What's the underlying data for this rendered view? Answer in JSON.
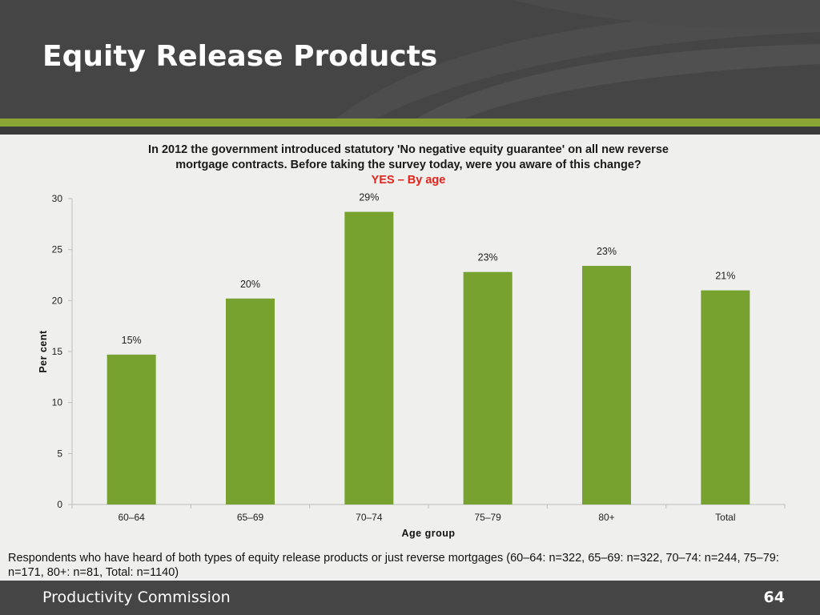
{
  "slide": {
    "title": "Equity Release Products",
    "footer_org": "Productivity Commission",
    "page_number": "64",
    "footnote": "Respondents who have heard of both types of equity release products or just reverse mortgages (60–64: n=322, 65–69: n=322, 70–74: n=244, 75–79: n=171, 80+: n=81, Total: n=1140)"
  },
  "colors": {
    "header_bg": "#454545",
    "accent_green": "#8aa533",
    "bar_green": "#78a22f",
    "subtitle_red": "#e3241b"
  },
  "chart_data": {
    "type": "bar",
    "title_line1": "In 2012 the government introduced statutory 'No negative equity guarantee' on all new reverse",
    "title_line2": "mortgage contracts. Before taking the survey today, were you aware of this change?",
    "subtitle": "YES – By age",
    "xlabel": "Age group",
    "ylabel": "Per cent",
    "ylim": [
      0,
      30
    ],
    "yticks": [
      "0",
      "5",
      "10",
      "15",
      "20",
      "25",
      "30"
    ],
    "categories": [
      "60–64",
      "65–69",
      "70–74",
      "75–79",
      "80+",
      "Total"
    ],
    "values": [
      14.7,
      20.2,
      28.7,
      22.8,
      23.4,
      21.0
    ],
    "labels": [
      "15%",
      "20%",
      "29%",
      "23%",
      "23%",
      "21%"
    ],
    "grid": false,
    "legend": "none"
  }
}
